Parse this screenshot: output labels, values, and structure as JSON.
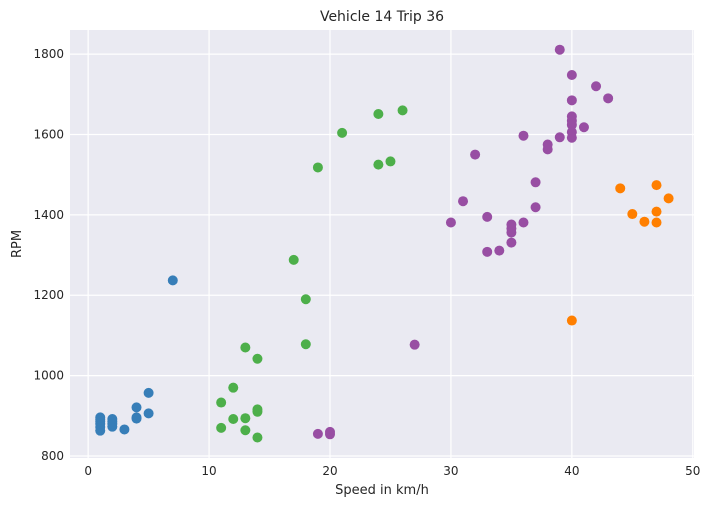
{
  "chart_data": {
    "type": "scatter",
    "title": "Vehicle 14 Trip 36",
    "xlabel": "Speed in km/h",
    "ylabel": "RPM",
    "xlim": [
      -1.5,
      50.1
    ],
    "ylim": [
      795,
      1860
    ],
    "x_ticks": [
      0,
      10,
      20,
      30,
      40,
      50
    ],
    "y_ticks": [
      800,
      1000,
      1200,
      1400,
      1600,
      1800
    ],
    "grid": true,
    "colors": {
      "background": "#EAEAF2",
      "grid": "#FFFFFF"
    },
    "series": [
      {
        "color": "#377EB8",
        "points": [
          [
            1,
            863
          ],
          [
            1,
            872
          ],
          [
            1,
            880
          ],
          [
            1,
            886
          ],
          [
            1,
            891
          ],
          [
            1,
            896
          ],
          [
            2,
            873
          ],
          [
            2,
            880
          ],
          [
            2,
            886
          ],
          [
            2,
            892
          ],
          [
            3,
            866
          ],
          [
            4,
            893
          ],
          [
            4,
            896
          ],
          [
            4,
            921
          ],
          [
            5,
            906
          ],
          [
            5,
            957
          ],
          [
            7,
            1237
          ]
        ]
      },
      {
        "color": "#4DAF4A",
        "points": [
          [
            11,
            870
          ],
          [
            11,
            933
          ],
          [
            12,
            892
          ],
          [
            12,
            970
          ],
          [
            13,
            864
          ],
          [
            13,
            894
          ],
          [
            13,
            1070
          ],
          [
            14,
            846
          ],
          [
            14,
            910
          ],
          [
            14,
            916
          ],
          [
            14,
            1042
          ],
          [
            17,
            1288
          ],
          [
            18,
            1078
          ],
          [
            18,
            1190
          ],
          [
            19,
            1518
          ],
          [
            21,
            1604
          ],
          [
            24,
            1525
          ],
          [
            24,
            1651
          ],
          [
            25,
            1533
          ],
          [
            26,
            1660
          ]
        ]
      },
      {
        "color": "#984EA3",
        "points": [
          [
            19,
            855
          ],
          [
            20,
            854
          ],
          [
            20,
            860
          ],
          [
            27,
            1077
          ],
          [
            30,
            1381
          ],
          [
            31,
            1434
          ],
          [
            32,
            1550
          ],
          [
            33,
            1308
          ],
          [
            33,
            1395
          ],
          [
            34,
            1311
          ],
          [
            35,
            1331
          ],
          [
            35,
            1356
          ],
          [
            35,
            1366
          ],
          [
            35,
            1376
          ],
          [
            36,
            1381
          ],
          [
            36,
            1597
          ],
          [
            37,
            1419
          ],
          [
            37,
            1481
          ],
          [
            38,
            1563
          ],
          [
            38,
            1575
          ],
          [
            39,
            1593
          ],
          [
            39,
            1811
          ],
          [
            40,
            1592
          ],
          [
            40,
            1606
          ],
          [
            40,
            1624
          ],
          [
            40,
            1634
          ],
          [
            40,
            1645
          ],
          [
            40,
            1685
          ],
          [
            40,
            1748
          ],
          [
            41,
            1618
          ],
          [
            42,
            1720
          ],
          [
            43,
            1690
          ]
        ]
      },
      {
        "color": "#FF7F00",
        "points": [
          [
            40,
            1137
          ],
          [
            44,
            1466
          ],
          [
            45,
            1402
          ],
          [
            46,
            1383
          ],
          [
            47,
            1381
          ],
          [
            47,
            1408
          ],
          [
            47,
            1474
          ],
          [
            48,
            1441
          ]
        ]
      }
    ]
  }
}
